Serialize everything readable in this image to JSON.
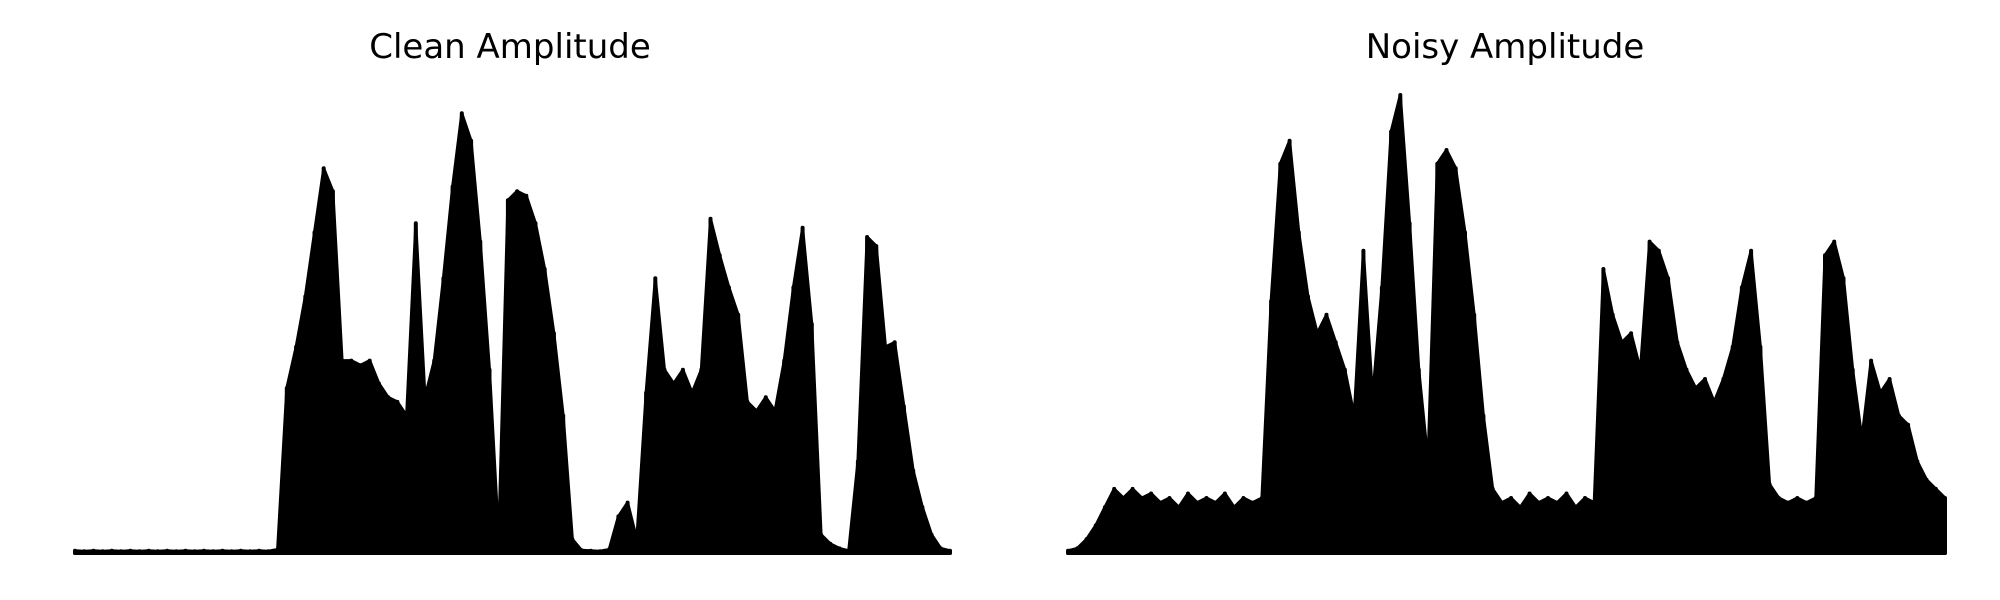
{
  "figure": {
    "background": "#ffffff",
    "line_color": "#000000"
  },
  "chart_data": [
    {
      "type": "area",
      "title": "Clean Amplitude",
      "xlabel": "",
      "ylabel": "",
      "axes_visible": false,
      "grid": false,
      "color": "#000000",
      "ylim": [
        0,
        100
      ],
      "series": [
        {
          "values": [
            0.5,
            0.4,
            0.5,
            0.4,
            0.5,
            0.4,
            0.5,
            0.4,
            0.5,
            0.4,
            0.5,
            0.4,
            0.5,
            0.4,
            0.5,
            0.4,
            0.5,
            0.4,
            0.5,
            0.4,
            0.5,
            0.4,
            0.8,
            36,
            45,
            56,
            70,
            84,
            79,
            42,
            42,
            41,
            42,
            37,
            34,
            33,
            30,
            72,
            34,
            42,
            60,
            80,
            96,
            90,
            68,
            40,
            3,
            77,
            79,
            78,
            72,
            62,
            48,
            30,
            3,
            0.6,
            0.5,
            0.4,
            0.8,
            8,
            11,
            3,
            35,
            60,
            40,
            37,
            40,
            35,
            40,
            73,
            65,
            58,
            52,
            33,
            31,
            34,
            31,
            42,
            58,
            71,
            50,
            4,
            2,
            1,
            0.5,
            20,
            69,
            67,
            45,
            46,
            32,
            18,
            10,
            4,
            1,
            0.5
          ]
        }
      ]
    },
    {
      "type": "area",
      "title": "Noisy Amplitude",
      "xlabel": "",
      "ylabel": "",
      "axes_visible": false,
      "grid": false,
      "color": "#000000",
      "ylim": [
        0,
        100
      ],
      "series": [
        {
          "values": [
            0.5,
            1,
            3,
            6,
            10,
            14,
            12,
            14,
            12,
            13,
            11,
            12,
            10,
            13,
            11,
            12,
            11,
            13,
            10,
            12,
            11,
            12,
            55,
            85,
            90,
            70,
            56,
            48,
            52,
            46,
            40,
            30,
            66,
            34,
            58,
            92,
            100,
            72,
            40,
            20,
            85,
            88,
            84,
            70,
            52,
            30,
            14,
            11,
            12,
            10,
            13,
            11,
            12,
            11,
            13,
            10,
            12,
            11,
            62,
            52,
            46,
            48,
            40,
            68,
            66,
            60,
            46,
            40,
            36,
            38,
            33,
            38,
            45,
            58,
            66,
            45,
            15,
            12,
            11,
            12,
            11,
            12,
            65,
            68,
            60,
            40,
            25,
            42,
            35,
            38,
            30,
            28,
            20,
            16,
            14,
            12
          ]
        }
      ]
    }
  ]
}
